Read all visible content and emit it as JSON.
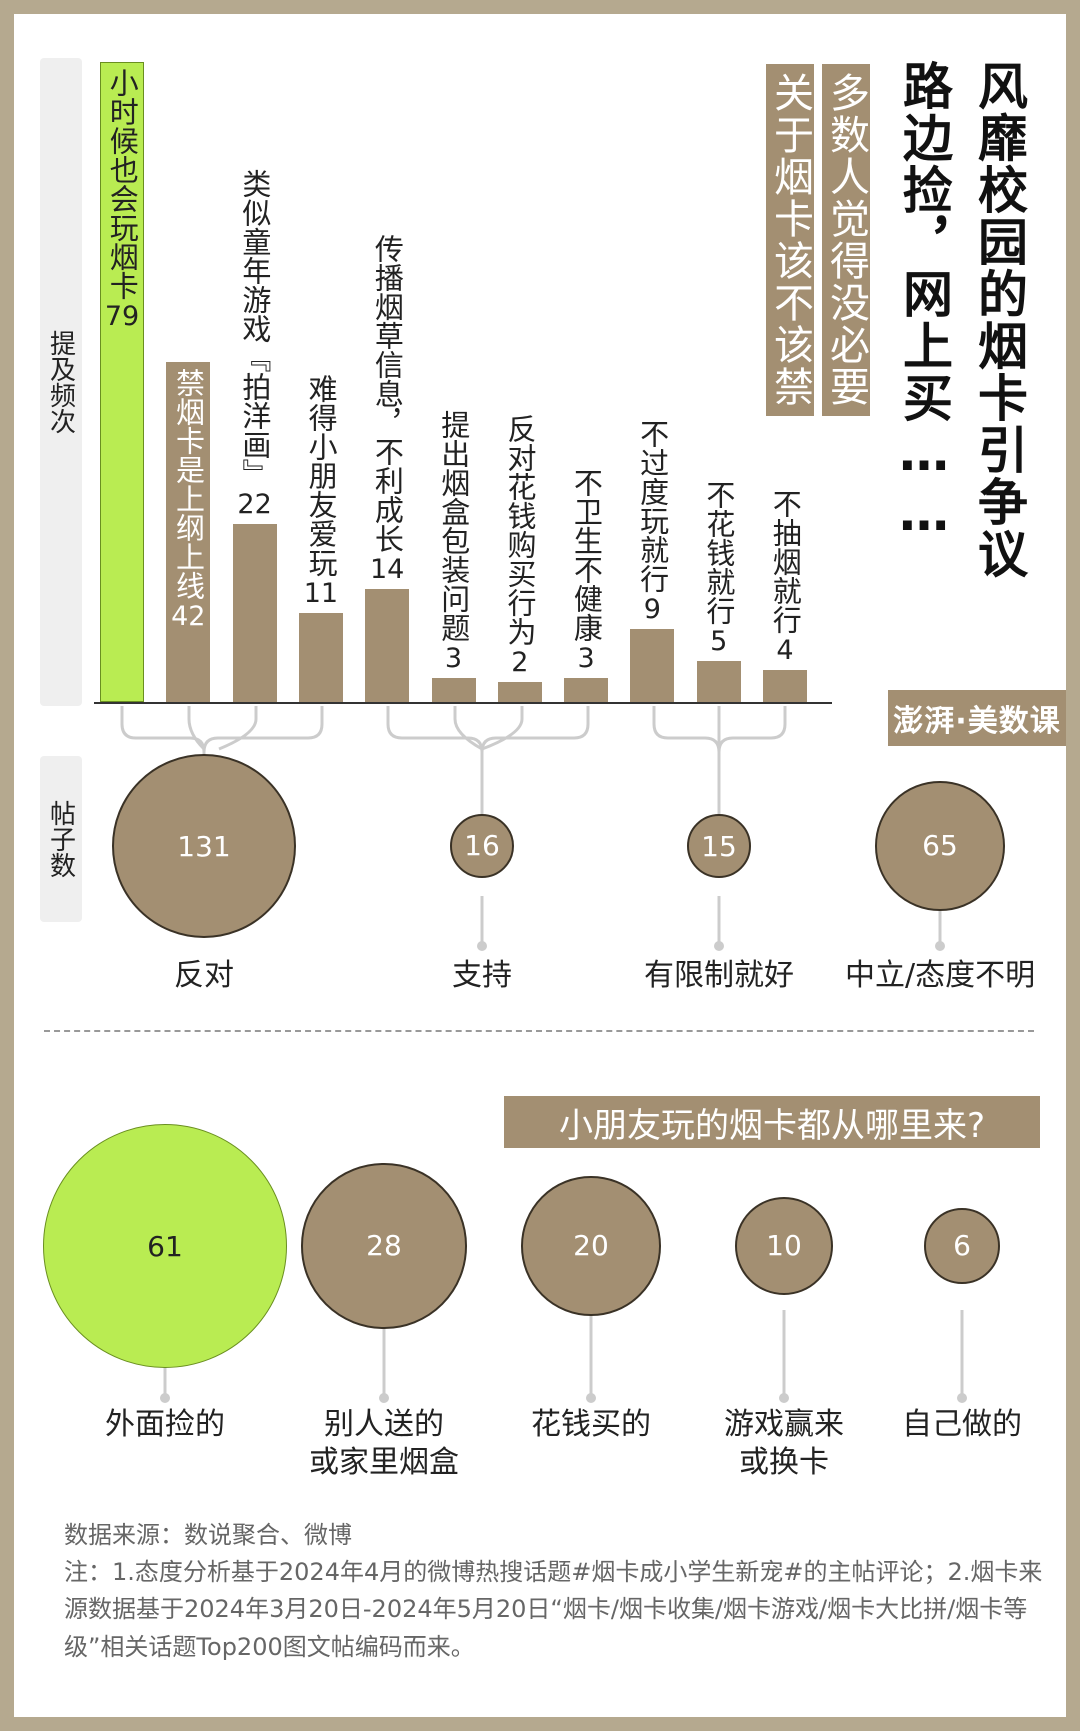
{
  "title": {
    "main": "风靡校园的烟卡引争议",
    "sub": "路边捡，网上买……",
    "tag1": "多数人觉得没必要",
    "tag2": "关于烟卡该不该禁"
  },
  "brand": {
    "logo_text": "澎湃·美数课"
  },
  "axis": {
    "frequency_label": "提及频次",
    "posts_label": "帖子数"
  },
  "chart_data": [
    {
      "type": "bar",
      "title": "",
      "ylabel": "提及频次",
      "categories": [
        "小时候也会玩烟卡",
        "禁烟卡是上纲上线",
        "类似童年游戏『拍洋画』",
        "难得小朋友爱玩",
        "传播烟草信息，不利成长",
        "提出烟盒包装问题",
        "反对花钱购买行为",
        "不卫生不健康",
        "不过度玩就行",
        "不花钱就行",
        "不抽烟就行"
      ],
      "values": [
        79,
        42,
        22,
        11,
        14,
        3,
        2,
        3,
        9,
        5,
        4
      ],
      "highlight": "小时候也会玩烟卡",
      "colors": {
        "bar": "#a38f72",
        "highlight": "#b9ec52"
      }
    },
    {
      "type": "bubble",
      "ylabel": "帖子数",
      "categories": [
        "反对",
        "支持",
        "有限制就好",
        "中立/态度不明"
      ],
      "values": [
        131,
        16,
        15,
        65
      ],
      "groups": [
        [
          0,
          1,
          2,
          3
        ],
        [
          4,
          5,
          6,
          7
        ],
        [
          8,
          9,
          10
        ],
        []
      ]
    },
    {
      "type": "bubble",
      "title": "小朋友玩的烟卡都从哪里来?",
      "categories": [
        "外面捡的",
        "别人送的 或家里烟盒",
        "花钱买的",
        "游戏赢来 或换卡",
        "自己做的"
      ],
      "values": [
        61,
        28,
        20,
        10,
        6
      ],
      "highlight": "外面捡的"
    }
  ],
  "labels": {
    "bars": [
      {
        "text": "小时候也会玩烟卡",
        "value": "79"
      },
      {
        "text": "禁烟卡是上纲上线",
        "value": "42"
      },
      {
        "text": "类似童年游戏『拍洋画』",
        "value": "22"
      },
      {
        "text": "难得小朋友爱玩",
        "value": "11"
      },
      {
        "text": "传播烟草信息，不利成长",
        "value": "14"
      },
      {
        "text": "提出烟盒包装问题",
        "value": "3"
      },
      {
        "text": "反对花钱购买行为",
        "value": "2"
      },
      {
        "text": "不卫生不健康",
        "value": "3"
      },
      {
        "text": "不过度玩就行",
        "value": "9"
      },
      {
        "text": "不花钱就行",
        "value": "5"
      },
      {
        "text": "不抽烟就行",
        "value": "4"
      }
    ],
    "attitudes": [
      {
        "text": "反对",
        "value": "131"
      },
      {
        "text": "支持",
        "value": "16"
      },
      {
        "text": "有限制就好",
        "value": "15"
      },
      {
        "text": "中立/态度不明",
        "value": "65"
      }
    ],
    "sources": [
      {
        "line1": "外面捡的",
        "line2": "",
        "value": "61"
      },
      {
        "line1": "别人送的",
        "line2": "或家里烟盒",
        "value": "28"
      },
      {
        "line1": "花钱买的",
        "line2": "",
        "value": "20"
      },
      {
        "line1": "游戏赢来",
        "line2": "或换卡",
        "value": "10"
      },
      {
        "line1": "自己做的",
        "line2": "",
        "value": "6"
      }
    ]
  },
  "notes": {
    "source": "数据来源：数说聚合、微博",
    "note": "注：1.态度分析基于2024年4月的微博热搜话题#烟卡成小学生新宠#的主帖评论；2.烟卡来源数据基于2024年3月20日-2024年5月20日“烟卡/烟卡收集/烟卡游戏/烟卡大比拼/烟卡等级”相关话题Top200图文帖编码而来。"
  }
}
